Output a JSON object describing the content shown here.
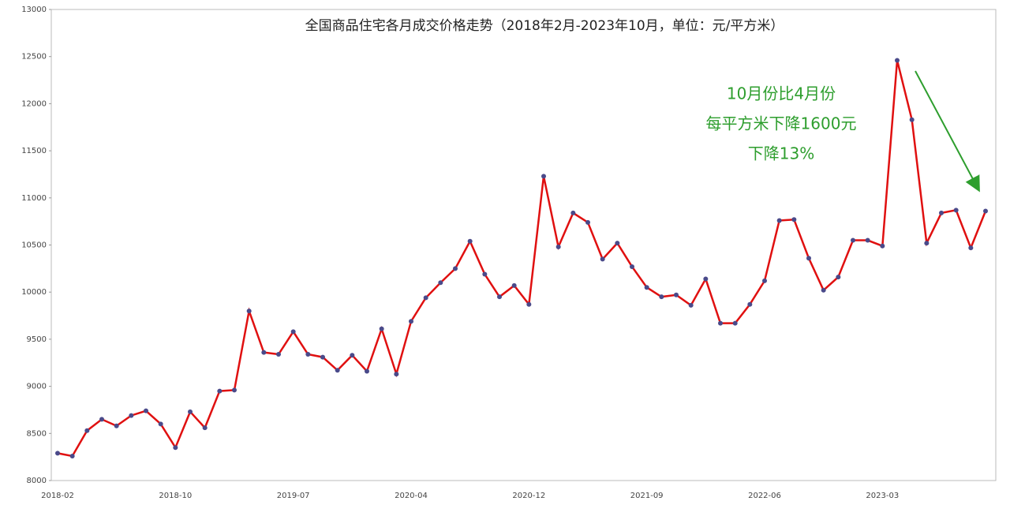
{
  "chart_data": {
    "type": "line",
    "title": "全国商品住宅各月成交价格走势（2018年2月-2023年10月，单位：元/平方米）",
    "categories": [
      "2018-02",
      null,
      null,
      null,
      null,
      null,
      null,
      null,
      "2018-10",
      null,
      null,
      null,
      null,
      null,
      null,
      null,
      "2019-07",
      null,
      null,
      null,
      null,
      null,
      null,
      null,
      "2020-04",
      null,
      null,
      null,
      null,
      null,
      null,
      null,
      "2020-12",
      null,
      null,
      null,
      null,
      null,
      null,
      null,
      "2021-09",
      null,
      null,
      null,
      null,
      null,
      null,
      null,
      "2022-06",
      null,
      null,
      null,
      null,
      null,
      null,
      null,
      "2023-03",
      null,
      null,
      null,
      null,
      null,
      null,
      null
    ],
    "series": [
      {
        "color": "#e01010",
        "values": [
          8290,
          8260,
          8530,
          8650,
          8580,
          8690,
          8740,
          8600,
          8350,
          8730,
          8560,
          8950,
          8960,
          9800,
          9360,
          9340,
          9580,
          9340,
          9310,
          9170,
          9330,
          9160,
          9610,
          9130,
          9690,
          9940,
          10100,
          10250,
          10540,
          10190,
          9950,
          10070,
          9870,
          11230,
          10480,
          10840,
          10740,
          10350,
          10520,
          10270,
          10050,
          9950,
          9970,
          9860,
          10140,
          9670,
          9670,
          9870,
          10120,
          10760,
          10770,
          10360,
          10020,
          10160,
          10550,
          10550,
          10490,
          12460,
          11830,
          10520,
          10840,
          10870,
          10470,
          10860
        ]
      }
    ],
    "marker_color": "#4a4a8a",
    "ylim": [
      8000,
      13000
    ],
    "yticks": [
      8000,
      8500,
      9000,
      9500,
      10000,
      10500,
      11000,
      11500,
      12000,
      12500,
      13000
    ],
    "annotation": [
      "10月份比4月份",
      "每平方米下降1600元",
      "下降13%"
    ],
    "annotation_color": "#2e9e2e"
  }
}
